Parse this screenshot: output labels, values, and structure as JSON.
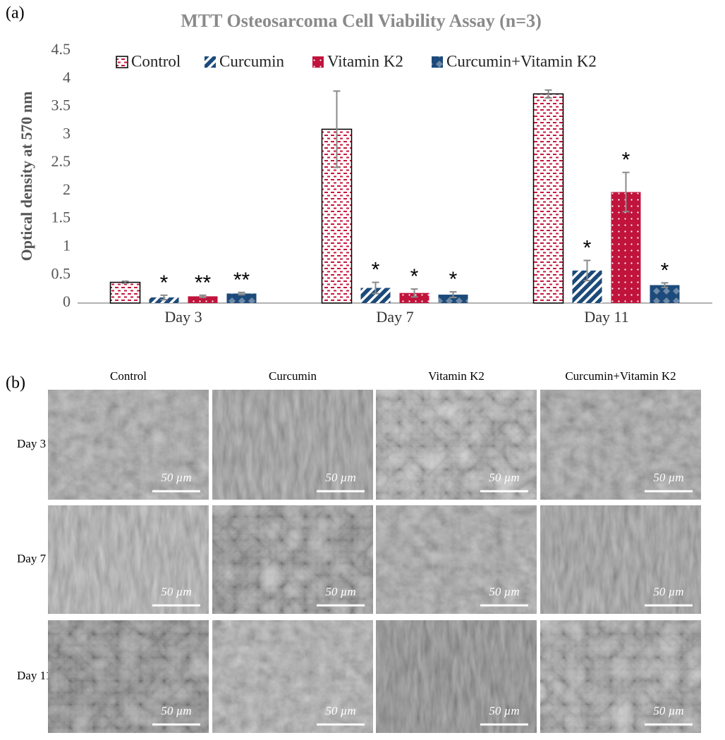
{
  "chart_data": {
    "type": "bar",
    "panel_label": "(a)",
    "title": "MTT Osteosarcoma Cell Viability Assay (n=3)",
    "y_label": "Optical density at 570 nm",
    "categories": [
      "Day 3",
      "Day 7",
      "Day 11"
    ],
    "series": [
      {
        "name": "Control",
        "color": "#c8163c",
        "values": [
          0.37,
          3.1,
          3.73
        ],
        "errors": [
          0.02,
          0.68,
          0.07
        ]
      },
      {
        "name": "Curcumin",
        "color": "#1c4a7a",
        "values": [
          0.1,
          0.27,
          0.58
        ],
        "errors": [
          0.04,
          0.1,
          0.18
        ],
        "annotations": [
          "*",
          "*",
          "*"
        ]
      },
      {
        "name": "Vitamin K2",
        "color": "#c0143c",
        "values": [
          0.12,
          0.18,
          1.98
        ],
        "errors": [
          0.02,
          0.07,
          0.35
        ],
        "annotations": [
          "**",
          "*",
          "*"
        ]
      },
      {
        "name": "Curcumin+Vitamin K2",
        "color": "#1c4a7a",
        "values": [
          0.17,
          0.15,
          0.32
        ],
        "errors": [
          0.02,
          0.05,
          0.04
        ],
        "annotations": [
          "**",
          "*",
          "*"
        ]
      }
    ],
    "ylim": [
      0,
      4.5
    ],
    "yticks": [
      0,
      0.5,
      1,
      1.5,
      2,
      2.5,
      3,
      3.5,
      4,
      4.5
    ],
    "grid": false,
    "legend": "top"
  },
  "sem_grid": {
    "panel_label": "(b)",
    "columns": [
      "Control",
      "Curcumin",
      "Vitamin K2",
      "Curcumin+Vitamin K2"
    ],
    "rows": [
      "Day 3",
      "Day 7",
      "Day 11"
    ],
    "scale_bar": "50 µm"
  }
}
